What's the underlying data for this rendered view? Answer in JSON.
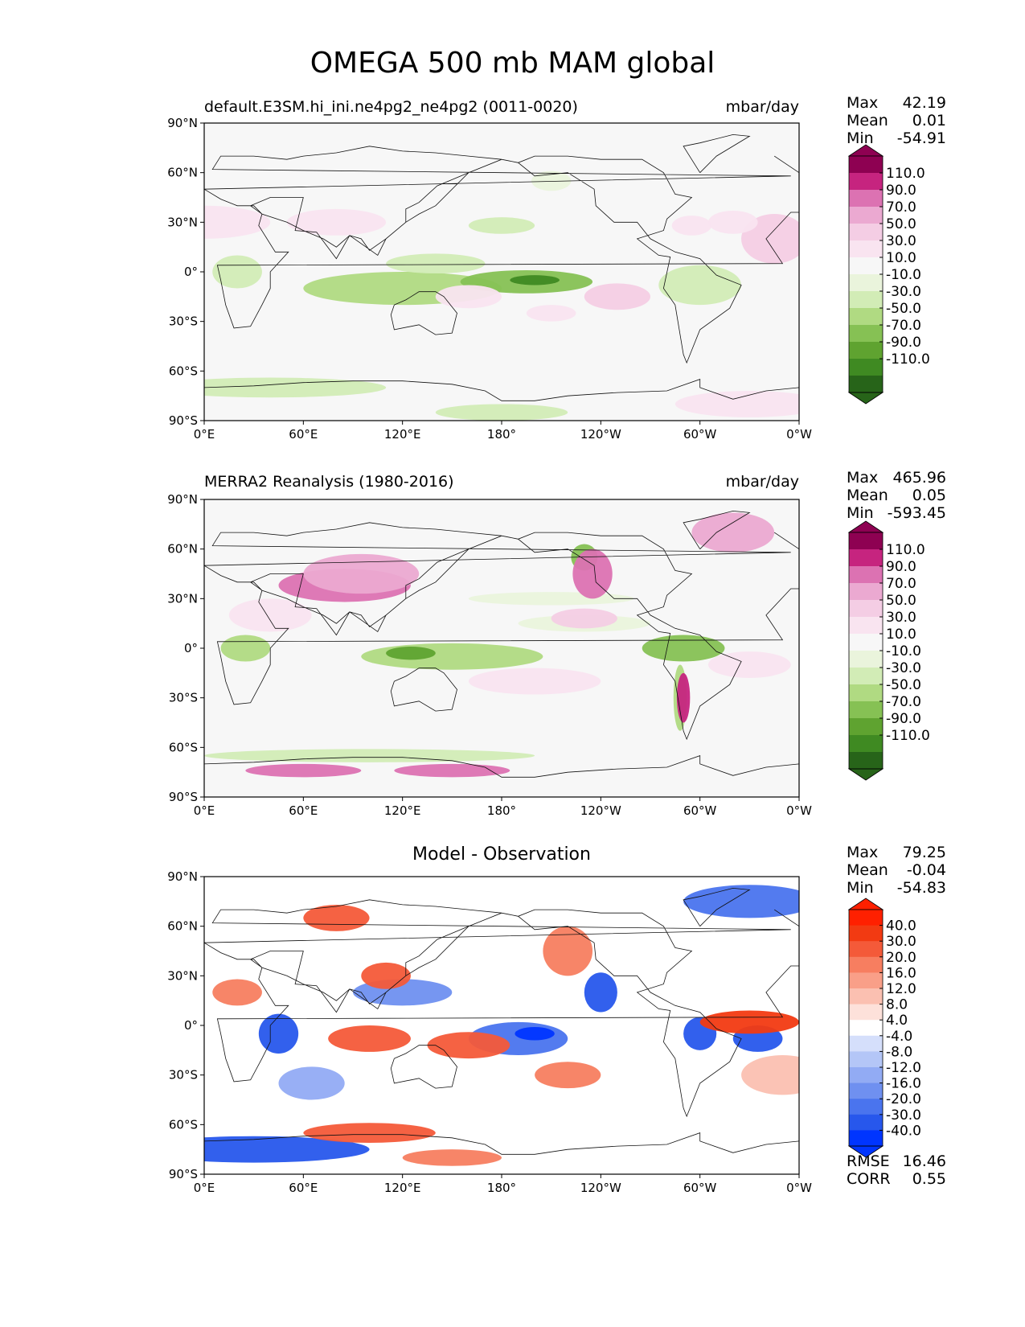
{
  "figure": {
    "title": "OMEGA 500 mb MAM global"
  },
  "axes": {
    "x_ticks": [
      "0°E",
      "60°E",
      "120°E",
      "180°",
      "120°W",
      "60°W",
      "0°W"
    ],
    "y_ticks": [
      "90°N",
      "60°N",
      "30°N",
      "0°",
      "30°S",
      "60°S",
      "90°S"
    ]
  },
  "colors": {
    "pink_scale": [
      "#276419",
      "#3f8a22",
      "#5fa330",
      "#86c154",
      "#b0da82",
      "#d2ecb6",
      "#eaf4dc",
      "#f7f7f7",
      "#f9e4f0",
      "#f4cde4",
      "#eba9d1",
      "#dc72b2",
      "#c6247f",
      "#8e0152"
    ],
    "diff_scale": [
      "#0035ff",
      "#2757ec",
      "#4a74ee",
      "#6f90f0",
      "#92abf4",
      "#b4c6f7",
      "#d5dffb",
      "#ffffff",
      "#fde1da",
      "#fbc0b1",
      "#f99f88",
      "#f77e60",
      "#f45a39",
      "#f23a12",
      "#ff2000"
    ]
  },
  "panels": [
    {
      "id": "model",
      "title_left": "default.E3SM.hi_ini.ne4pg2_ne4pg2 (0011-0020)",
      "title_center": "",
      "units": "mbar/day",
      "stats": [
        {
          "label": "Max",
          "value": "42.19"
        },
        {
          "label": "Mean",
          "value": "0.01"
        },
        {
          "label": "Min",
          "value": "-54.91"
        }
      ],
      "colorbar_labels": [
        "110.0",
        "90.0",
        "70.0",
        "50.0",
        "30.0",
        "10.0",
        "-10.0",
        "-30.0",
        "-50.0",
        "-70.0",
        "-90.0",
        "-110.0"
      ]
    },
    {
      "id": "obs",
      "title_left": "MERRA2 Reanalysis (1980-2016)",
      "title_center": "",
      "units": "mbar/day",
      "stats": [
        {
          "label": "Max",
          "value": "465.96"
        },
        {
          "label": "Mean",
          "value": "0.05"
        },
        {
          "label": "Min",
          "value": "-593.45"
        }
      ],
      "colorbar_labels": [
        "110.0",
        "90.0",
        "70.0",
        "50.0",
        "30.0",
        "10.0",
        "-10.0",
        "-30.0",
        "-50.0",
        "-70.0",
        "-90.0",
        "-110.0"
      ]
    },
    {
      "id": "diff",
      "title_left": "",
      "title_center": "Model - Observation",
      "units": "",
      "stats": [
        {
          "label": "Max",
          "value": "79.25"
        },
        {
          "label": "Mean",
          "value": "-0.04"
        },
        {
          "label": "Min",
          "value": "-54.83"
        }
      ],
      "colorbar_labels": [
        "40.0",
        "30.0",
        "20.0",
        "16.0",
        "12.0",
        "8.0",
        "4.0",
        "-4.0",
        "-8.0",
        "-12.0",
        "-16.0",
        "-20.0",
        "-30.0",
        "-40.0"
      ],
      "metrics": [
        {
          "label": "RMSE",
          "value": "16.46"
        },
        {
          "label": "CORR",
          "value": "0.55"
        }
      ]
    }
  ]
}
